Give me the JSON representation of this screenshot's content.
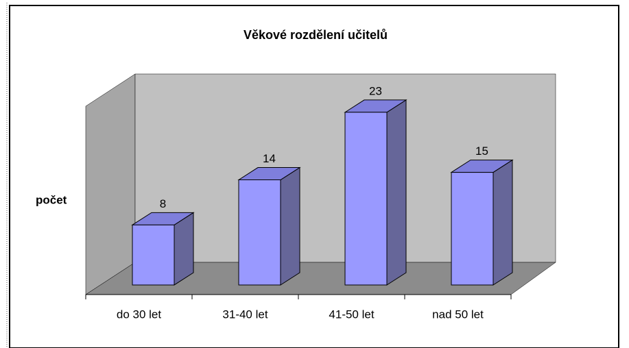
{
  "chart_data": {
    "type": "bar",
    "title": "Věkové rozdělení učitelů",
    "y_label": "počet",
    "categories": [
      "do 30 let",
      "31-40 let",
      "41-50 let",
      "nad 50 let"
    ],
    "values": [
      8,
      14,
      23,
      15
    ],
    "color": "#9999ff",
    "ylim": [
      0,
      25
    ]
  }
}
